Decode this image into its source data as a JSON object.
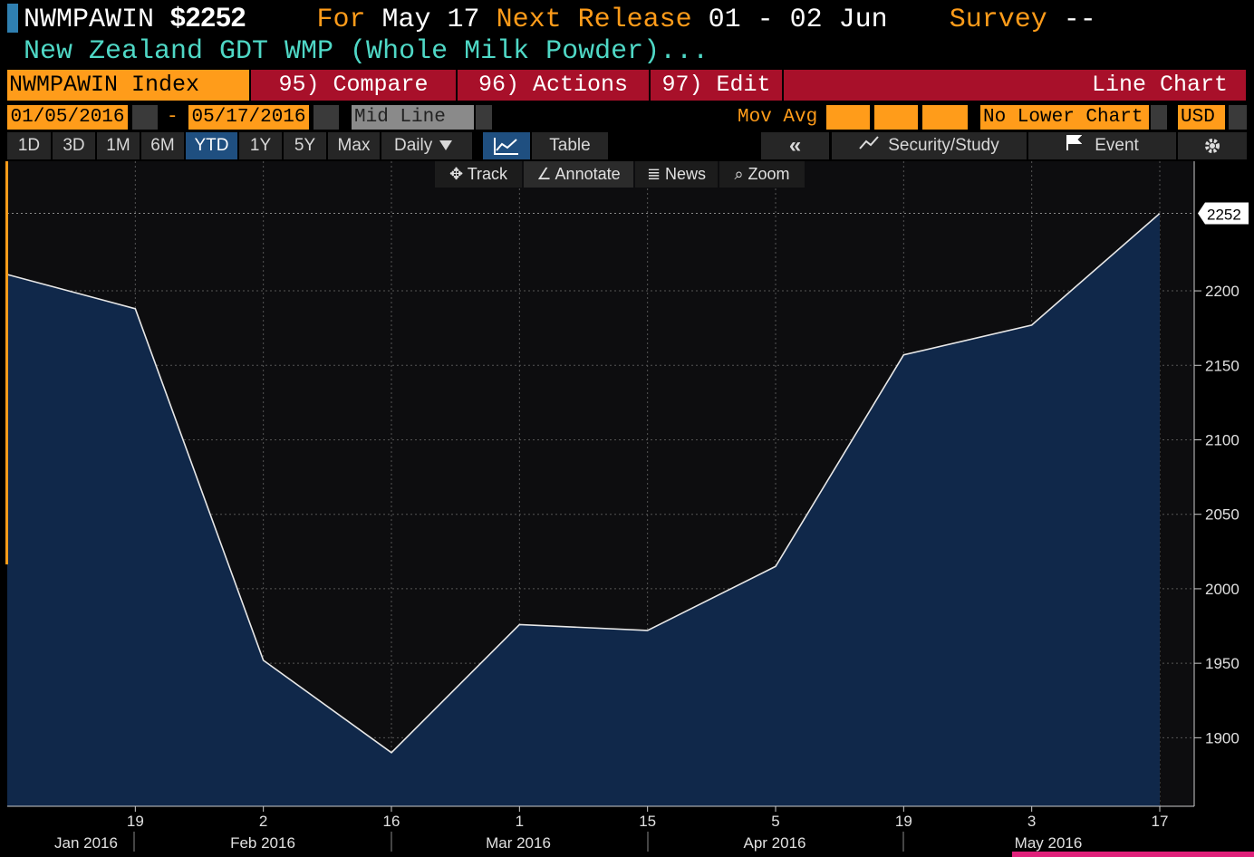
{
  "header": {
    "ticker": "NWMPAWIN",
    "price": "$2252",
    "for_label": "For",
    "for_date": "May 17",
    "next_release_label": "Next Release",
    "next_release": "01 - 02 Jun",
    "survey_label": "Survey",
    "survey": "--",
    "subtitle": "New Zealand GDT WMP (Whole Milk Powder)..."
  },
  "toolbar": {
    "security": "NWMPAWIN Index",
    "buttons": [
      "95) Compare",
      "96) Actions",
      "97) Edit"
    ],
    "chart_type": "Line Chart"
  },
  "range_bar": {
    "start_date": "01/05/2016",
    "separator": "-",
    "end_date": "05/17/2016",
    "price_field": "Mid Line",
    "mov_avg_label": "Mov Avg",
    "lower_chart": "No Lower Chart",
    "currency": "USD"
  },
  "period_bar": {
    "periods": [
      "1D",
      "3D",
      "1M",
      "6M",
      "YTD",
      "1Y",
      "5Y",
      "Max"
    ],
    "frequency": "Daily",
    "table": "Table",
    "collapse": "«",
    "security_study": "Security/Study",
    "event": "Event"
  },
  "chart_tools": [
    "Track",
    "Annotate",
    "News",
    "Zoom"
  ],
  "chart_data": {
    "type": "area",
    "categories": [
      null,
      "19",
      "2",
      "16",
      "1",
      "15",
      "5",
      "19",
      "3",
      "17"
    ],
    "month_labels": [
      "Jan 2016",
      "Feb 2016",
      "Mar 2016",
      "Apr 2016",
      "May 2016"
    ],
    "values": [
      2211,
      2188,
      1952,
      1890,
      1976,
      1972,
      2015,
      2157,
      2177,
      2252
    ],
    "color": "#e8e8e8",
    "fill": "#10284a",
    "ylim": [
      1854,
      2287
    ],
    "yticks": [
      1900,
      1950,
      2000,
      2050,
      2100,
      2150,
      2200
    ],
    "grid": true
  }
}
